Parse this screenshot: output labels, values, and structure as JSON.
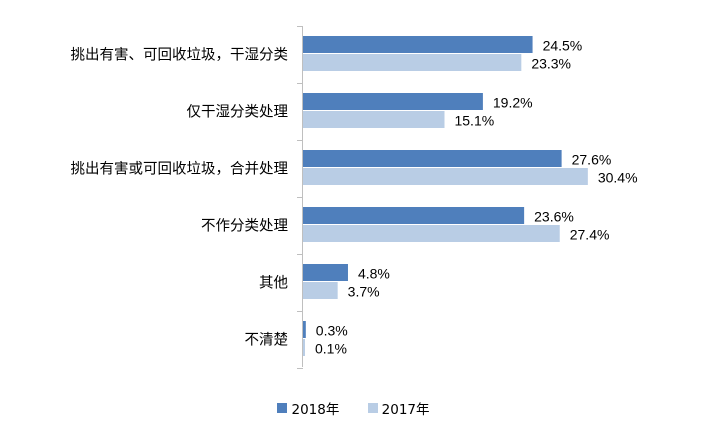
{
  "chart_data": {
    "type": "bar",
    "orientation": "horizontal",
    "categories": [
      "挑出有害、可回收垃圾，干湿分类",
      "仅干湿分类处理",
      "挑出有害或可回收垃圾，合并处理",
      "不作分类处理",
      "其他",
      "不清楚"
    ],
    "series": [
      {
        "name": "2018年",
        "color": "#4f7fbc",
        "values": [
          24.5,
          19.2,
          27.6,
          23.6,
          4.8,
          0.3
        ],
        "labels": [
          "24.5%",
          "19.2%",
          "27.6%",
          "23.6%",
          "4.8%",
          "0.3%"
        ]
      },
      {
        "name": "2017年",
        "color": "#b9cde5",
        "values": [
          23.3,
          15.1,
          30.4,
          27.4,
          3.7,
          0.1
        ],
        "labels": [
          "23.3%",
          "15.1%",
          "30.4%",
          "27.4%",
          "3.7%",
          "0.1%"
        ]
      }
    ],
    "xlim": [
      0,
      40
    ],
    "grid": false,
    "legend_position": "bottom"
  }
}
